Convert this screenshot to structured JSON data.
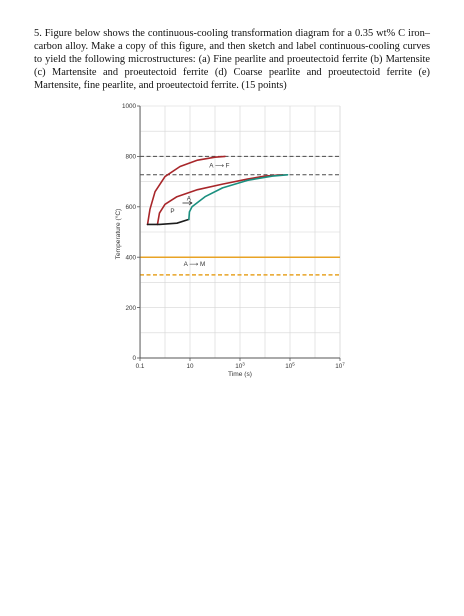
{
  "question": {
    "text": "5. Figure below shows the continuous-cooling transformation diagram for a 0.35 wt% C iron–carbon alloy. Make a copy of this figure, and then sketch and label continuous-cooling curves to yield the following microstructures: (a) Fine pearlite and proeutectoid ferrite (b) Martensite (c) Martensite and proeutectoid ferrite (d) Coarse pearlite and proeutectoid ferrite (e) Martensite, fine pearlite, and proeutectoid ferrite. (15 points)"
  },
  "chart_data": {
    "type": "line",
    "ylabel": "Temperature (°C)",
    "xlabel": "Time (s)",
    "x_scale": "log",
    "xlim": [
      0.1,
      10000000
    ],
    "ylim": [
      0,
      1000
    ],
    "x_ticks": [
      {
        "value": 0.1,
        "label": "0.1"
      },
      {
        "value": 10,
        "label": "10"
      },
      {
        "value": 1000,
        "label": "10",
        "sup": "3"
      },
      {
        "value": 100000,
        "label": "10",
        "sup": "5"
      },
      {
        "value": 10000000,
        "label": "10",
        "sup": "7"
      }
    ],
    "y_ticks": [
      0,
      200,
      400,
      600,
      800,
      1000
    ],
    "grid": true,
    "reference_lines": [
      {
        "name": "upper critical",
        "y": 800,
        "style": "dashed",
        "color": "#4a4a4a"
      },
      {
        "name": "eutectoid",
        "y": 727,
        "style": "dashed",
        "color": "#4a4a4a"
      },
      {
        "name": "Ms",
        "y": 400,
        "style": "solid",
        "color": "#e8a325"
      },
      {
        "name": "M50",
        "y": 330,
        "style": "dashed",
        "color": "#e8a325"
      }
    ],
    "series": [
      {
        "color": "#a8262a",
        "points": [
          [
            0.2,
            530
          ],
          [
            0.25,
            590
          ],
          [
            0.4,
            660
          ],
          [
            1,
            720
          ],
          [
            4,
            760
          ],
          [
            20,
            785
          ],
          [
            100,
            797
          ],
          [
            250,
            800
          ]
        ]
      },
      {
        "color": "#a8262a",
        "points": [
          [
            0.5,
            530
          ],
          [
            0.6,
            575
          ],
          [
            1,
            610
          ],
          [
            3,
            640
          ],
          [
            20,
            668
          ],
          [
            200,
            690
          ],
          [
            2000,
            710
          ],
          [
            10000,
            722
          ],
          [
            50000,
            727
          ]
        ]
      },
      {
        "color": "#1d1d1d",
        "points": [
          [
            0.2,
            530
          ],
          [
            0.6,
            530
          ],
          [
            3,
            535
          ],
          [
            9,
            550
          ]
        ]
      },
      {
        "color": "#1a8f7f",
        "points": [
          [
            9,
            550
          ],
          [
            9.5,
            580
          ],
          [
            12,
            600
          ],
          [
            40,
            640
          ],
          [
            200,
            675
          ],
          [
            2000,
            705
          ],
          [
            20000,
            722
          ],
          [
            80000,
            727
          ]
        ]
      }
    ],
    "annotations": [
      {
        "text": "A ⟶ F",
        "x": 150,
        "y": 755,
        "color": "#222"
      },
      {
        "text": "A",
        "x": 9,
        "y": 625,
        "color": "#222"
      },
      {
        "text": "P",
        "x": 2,
        "y": 575,
        "color": "#222"
      },
      {
        "text": "A ⟶ M",
        "x": 15,
        "y": 365,
        "color": "#222"
      }
    ],
    "colors": {
      "axis": "#555555",
      "grid": "#d6d6d6",
      "label": "#333333"
    }
  }
}
